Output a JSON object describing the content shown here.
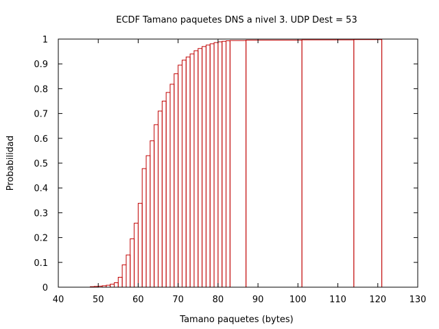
{
  "chart_data": {
    "type": "bar",
    "subtype": "ecdf-impulses",
    "title": "ECDF Tamano paquetes DNS a nivel 3. UDP Dest = 53",
    "xlabel": "Tamano paquetes (bytes)",
    "ylabel": "Probabilidad",
    "xlim": [
      40,
      130
    ],
    "ylim": [
      0,
      1
    ],
    "xticks": [
      40,
      50,
      60,
      70,
      80,
      90,
      100,
      110,
      120,
      130
    ],
    "yticks": [
      0,
      0.1,
      0.2,
      0.3,
      0.4,
      0.5,
      0.6,
      0.7,
      0.8,
      0.9,
      1
    ],
    "ytick_labels": [
      "0",
      "0.1",
      "0.2",
      "0.3",
      "0.4",
      "0.5",
      "0.6",
      "0.7",
      "0.8",
      "0.9",
      "1"
    ],
    "grid": false,
    "series_color": "#c00000",
    "x": [
      48,
      49,
      50,
      51,
      52,
      53,
      54,
      55,
      56,
      57,
      58,
      59,
      60,
      61,
      62,
      63,
      64,
      65,
      66,
      67,
      68,
      69,
      70,
      71,
      72,
      73,
      74,
      75,
      76,
      77,
      78,
      79,
      80,
      81,
      82,
      83,
      87,
      101,
      114,
      121
    ],
    "y": [
      0.002,
      0.003,
      0.004,
      0.006,
      0.008,
      0.012,
      0.018,
      0.04,
      0.09,
      0.13,
      0.195,
      0.258,
      0.338,
      0.478,
      0.53,
      0.59,
      0.655,
      0.71,
      0.75,
      0.785,
      0.818,
      0.86,
      0.895,
      0.915,
      0.928,
      0.94,
      0.953,
      0.962,
      0.97,
      0.976,
      0.981,
      0.986,
      0.989,
      0.991,
      0.993,
      0.994,
      0.996,
      0.997,
      0.998,
      1.0
    ]
  }
}
